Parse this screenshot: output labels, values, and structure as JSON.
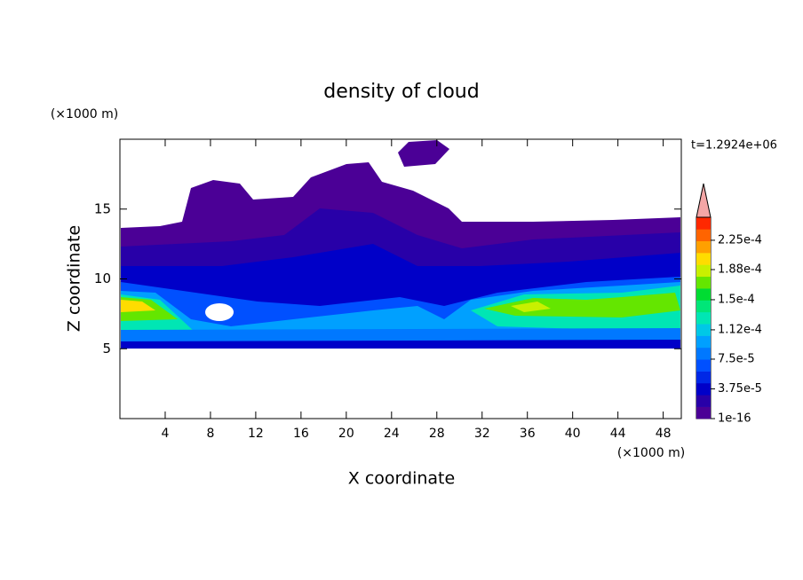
{
  "chart_data": {
    "type": "contour",
    "title": "density of cloud",
    "x_label": "X coordinate",
    "y_label": "Z coordinate",
    "x_unit": "(×1000 m)",
    "y_unit": "(×1000 m)",
    "annotation": "t=1.2924e+06",
    "xlim": [
      0,
      49.6
    ],
    "xticks": [
      4,
      8,
      12,
      16,
      20,
      24,
      28,
      32,
      36,
      40,
      44,
      48
    ],
    "ylim": [
      0,
      20
    ],
    "yticks": [
      5,
      10,
      15
    ],
    "colorbar": {
      "lim": [
        1e-16,
        0.000254
      ],
      "colors": [
        "#4b0096",
        "#2800a8",
        "#0000c8",
        "#0028e6",
        "#0050ff",
        "#0078ff",
        "#00a0ff",
        "#00c8e6",
        "#00e6b4",
        "#00e678",
        "#00dc32",
        "#64e600",
        "#c8f000",
        "#ffdc00",
        "#ffa000",
        "#ff6400",
        "#ff2800"
      ],
      "extend_color": "#f4a6a6",
      "ticks": [
        1e-16,
        {
          "value": 3.75e-05,
          "label": "3.75e-5"
        },
        {
          "value": 7.5e-05,
          "label": "7.5e-5"
        },
        {
          "value": 0.000112,
          "label": "1.12e-4"
        },
        {
          "value": 0.00015,
          "label": "1.5e-4"
        },
        {
          "value": 0.000188,
          "label": "1.88e-4"
        },
        {
          "value": 0.000225,
          "label": "2.25e-4"
        }
      ]
    }
  }
}
